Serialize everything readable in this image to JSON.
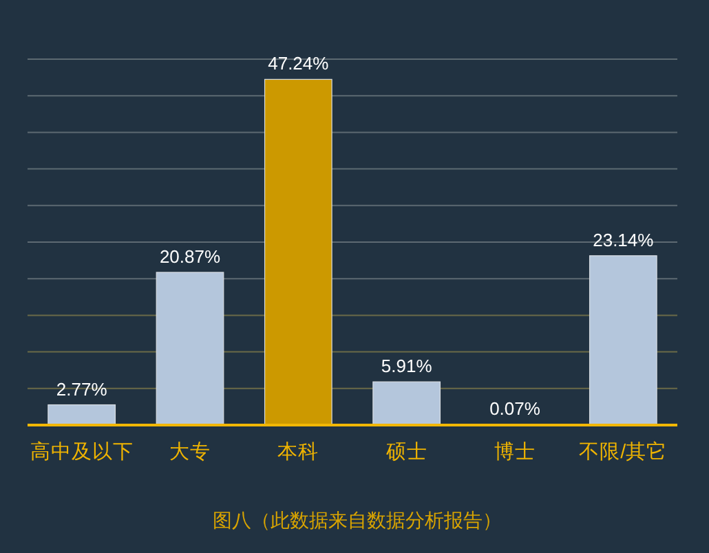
{
  "chart_data": {
    "type": "bar",
    "categories": [
      "高中及以下",
      "大专",
      "本科",
      "硕士",
      "博士",
      "不限/其它"
    ],
    "values": [
      2.77,
      20.87,
      47.24,
      5.91,
      0.07,
      23.14
    ],
    "colors": [
      "#b4c6dc",
      "#b4c6dc",
      "#cc9900",
      "#b4c6dc",
      "#b4c6dc",
      "#b4c6dc"
    ],
    "value_labels": [
      "2.77%",
      "20.87%",
      "47.24%",
      "5.91%",
      "0.07%",
      "23.14%"
    ],
    "ylim": [
      0,
      50
    ],
    "yticks": [
      {
        "value": 5,
        "label": null
      },
      {
        "value": 10,
        "label": null
      },
      {
        "value": 15,
        "label": null
      },
      {
        "value": 20,
        "label": null
      },
      {
        "value": 25,
        "label": null
      },
      {
        "value": 30,
        "label": null
      },
      {
        "value": 35,
        "label": null
      },
      {
        "value": 40,
        "label": null
      },
      {
        "value": 45,
        "label": null
      },
      {
        "value": 50,
        "label": null
      }
    ],
    "grid": "y",
    "tick_labels": "x",
    "annotations": [
      "图八（此数据来自数据分析报告）"
    ]
  }
}
